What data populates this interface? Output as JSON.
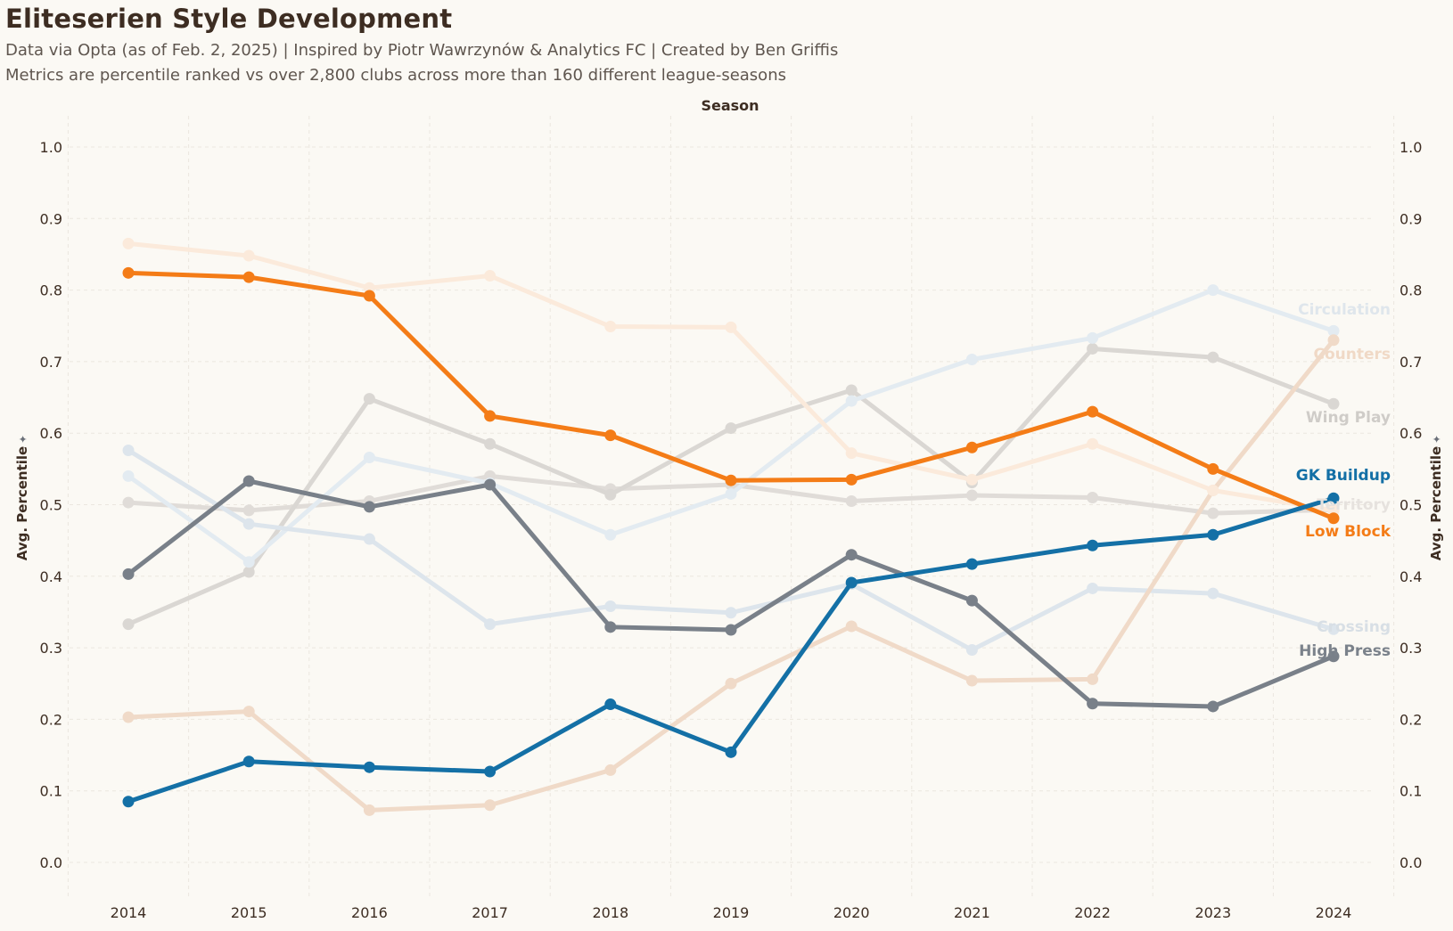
{
  "header": {
    "title": "Eliteserien Style Development",
    "subtitle1": "Data via Opta (as of Feb. 2, 2025) | Inspired by Piotr Wawrzynów & Analytics FC | Created by Ben Griffis",
    "subtitle2": "Metrics are percentile ranked vs over 2,800 clubs across more than 160 different league-seasons"
  },
  "chart_data": {
    "type": "line",
    "title": "Eliteserien Style Development",
    "xlabel": "Season",
    "ylabel": "Avg. Percentile",
    "ylabel_right": "Avg. Percentile",
    "categories": [
      "2014",
      "2015",
      "2016",
      "2017",
      "2018",
      "2019",
      "2020",
      "2021",
      "2022",
      "2023",
      "2024"
    ],
    "ylim": [
      0,
      1.0
    ],
    "yticks": [
      "0.0",
      "0.1",
      "0.2",
      "0.3",
      "0.4",
      "0.5",
      "0.6",
      "0.7",
      "0.8",
      "0.9",
      "1.0"
    ],
    "grid": true,
    "legend": "inline labels at right end of lines",
    "series": [
      {
        "name": "Territory",
        "color": "#e0dcd8",
        "highlight": false,
        "label_color": "#e6e2de",
        "values": [
          0.503,
          0.492,
          0.505,
          0.54,
          0.522,
          0.528,
          0.505,
          0.513,
          0.51,
          0.488,
          0.493
        ]
      },
      {
        "name": "Wing Play",
        "color": "#dad7d3",
        "highlight": false,
        "label_color": "#cfccc8",
        "values": [
          0.333,
          0.406,
          0.648,
          0.585,
          0.514,
          0.607,
          0.66,
          0.531,
          0.718,
          0.706,
          0.641
        ]
      },
      {
        "name": "Circulation",
        "color": "#e3ebf1",
        "highlight": false,
        "label_color": "#dfe6ec",
        "values": [
          0.54,
          0.42,
          0.566,
          0.53,
          0.458,
          0.515,
          0.645,
          0.703,
          0.733,
          0.8,
          0.743
        ]
      },
      {
        "name": "Crossing",
        "color": "#dde5ec",
        "highlight": false,
        "label_color": "#d8dfe5",
        "values": [
          0.576,
          0.473,
          0.452,
          0.333,
          0.358,
          0.349,
          0.389,
          0.297,
          0.383,
          0.376,
          0.326
        ]
      },
      {
        "name": "Counters",
        "color": "#f0dac8",
        "highlight": false,
        "label_color": "#f0d9c6",
        "values": [
          0.203,
          0.211,
          0.073,
          0.08,
          0.129,
          0.25,
          0.33,
          0.254,
          0.256,
          0.52,
          0.73
        ]
      },
      {
        "name": "",
        "color": "#fbeadb",
        "highlight": false,
        "label_color": "#fbeadb",
        "values": [
          0.865,
          0.848,
          0.803,
          0.82,
          0.749,
          0.748,
          0.572,
          0.535,
          0.585,
          0.52,
          0.492
        ]
      },
      {
        "name": "High Press",
        "color": "#798089",
        "highlight": true,
        "label_color": "#7b828b",
        "values": [
          0.403,
          0.533,
          0.497,
          0.528,
          0.329,
          0.325,
          0.43,
          0.366,
          0.222,
          0.218,
          0.288
        ]
      },
      {
        "name": "Low Block",
        "color": "#f47c17",
        "highlight": true,
        "label_color": "#f47c17",
        "values": [
          0.824,
          0.818,
          0.792,
          0.624,
          0.597,
          0.534,
          0.535,
          0.58,
          0.63,
          0.55,
          0.481
        ]
      },
      {
        "name": "GK Buildup",
        "color": "#1470a6",
        "highlight": true,
        "label_color": "#1470a6",
        "values": [
          0.085,
          0.141,
          0.133,
          0.127,
          0.221,
          0.154,
          0.391,
          0.417,
          0.443,
          0.458,
          0.509
        ]
      }
    ]
  },
  "colors": {
    "background": "#fbf9f4",
    "grid": "#ebe7df",
    "text": "#3d2d22",
    "muted": "#5f564f"
  }
}
